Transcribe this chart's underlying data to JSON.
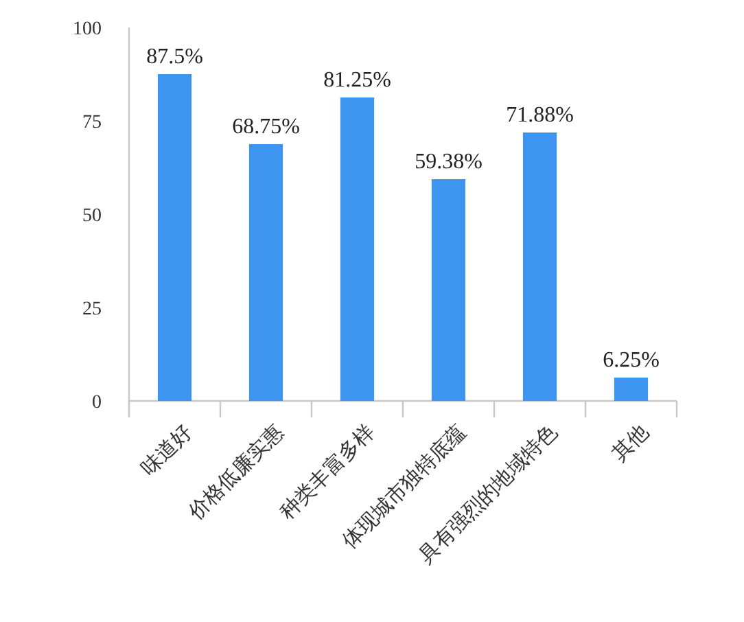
{
  "chart_data": {
    "type": "bar",
    "categories": [
      "味道好",
      "价格低廉实惠",
      "种类丰富多样",
      "体现城市独特底蕴",
      "具有强烈的地域特色",
      "其他"
    ],
    "values": [
      87.5,
      68.75,
      81.25,
      59.38,
      71.88,
      6.25
    ],
    "value_labels": [
      "87.5%",
      "68.75%",
      "81.25%",
      "59.38%",
      "71.88%",
      "6.25%"
    ],
    "color": "#3d95f0",
    "ylim": [
      0,
      100
    ],
    "yticks": [
      0,
      25,
      50,
      75,
      100
    ],
    "grid": false
  }
}
